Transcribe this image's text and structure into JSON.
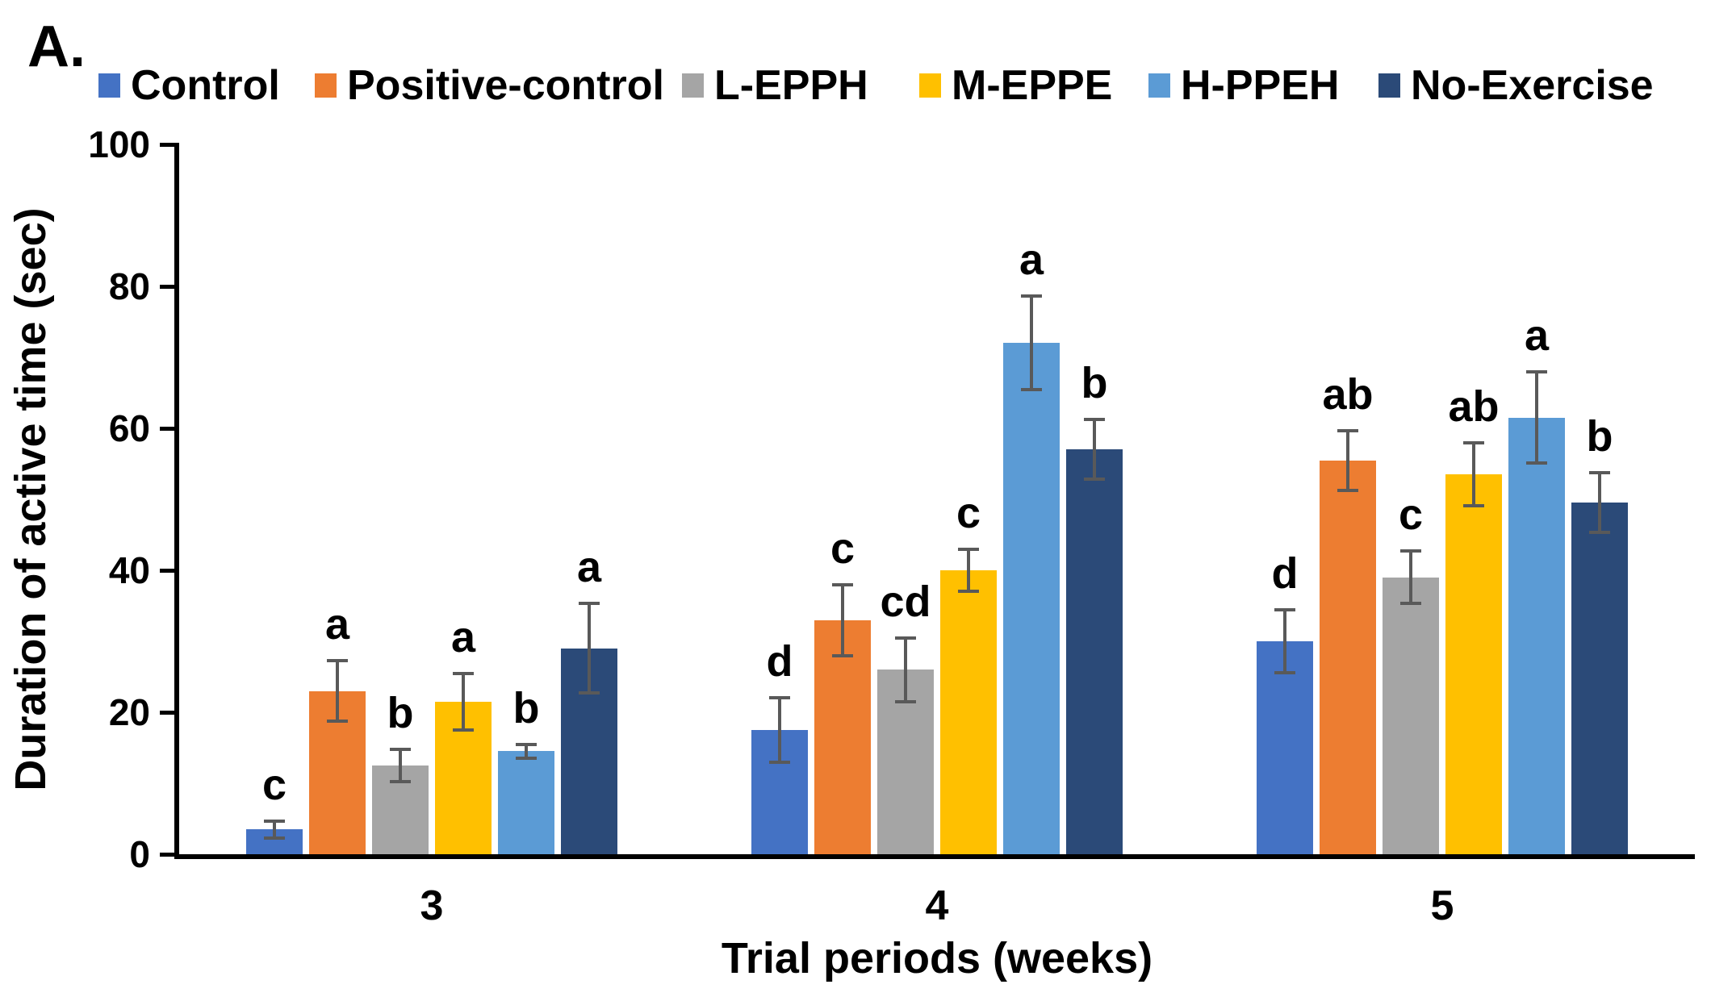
{
  "panel_label": "A.",
  "chart_data": {
    "type": "bar",
    "title": "",
    "xlabel": "Trial periods (weeks)",
    "ylabel": "Duration of active time (sec)",
    "ylim": [
      0,
      100
    ],
    "yticks": [
      0,
      20,
      40,
      60,
      80,
      100
    ],
    "grid": "off",
    "legend_position": "top",
    "error_bar_color": "#595959",
    "axis_color": "#000000",
    "categories": [
      "3",
      "4",
      "5"
    ],
    "series": [
      {
        "name": "Control",
        "color": "#4472C4",
        "values": [
          3.5,
          17.5,
          30
        ],
        "errors": [
          1.2,
          4.5,
          4.4
        ],
        "letters": [
          "c",
          "d",
          "d"
        ]
      },
      {
        "name": "Positive-control",
        "color": "#ED7D31",
        "values": [
          23,
          33,
          55.5
        ],
        "errors": [
          4.3,
          5,
          4.2
        ],
        "letters": [
          "a",
          "c",
          "ab"
        ]
      },
      {
        "name": "L-EPPH",
        "color": "#A5A5A5",
        "values": [
          12.5,
          26,
          39
        ],
        "errors": [
          2.3,
          4.5,
          3.7
        ],
        "letters": [
          "b",
          "cd",
          "c"
        ]
      },
      {
        "name": "M-EPPE",
        "color": "#FFC000",
        "values": [
          21.5,
          40,
          53.5
        ],
        "errors": [
          4,
          3,
          4.4
        ],
        "letters": [
          "a",
          "c",
          "ab"
        ]
      },
      {
        "name": "H-PPEH",
        "color": "#5B9BD5",
        "values": [
          14.5,
          72,
          61.5
        ],
        "errors": [
          1,
          6.6,
          6.4
        ],
        "letters": [
          "b",
          "a",
          "a"
        ]
      },
      {
        "name": "No-Exercise",
        "color": "#2B4A78",
        "values": [
          29,
          57,
          49.5
        ],
        "errors": [
          6.3,
          4.2,
          4.2
        ],
        "letters": [
          "a",
          "b",
          "b"
        ]
      }
    ]
  }
}
